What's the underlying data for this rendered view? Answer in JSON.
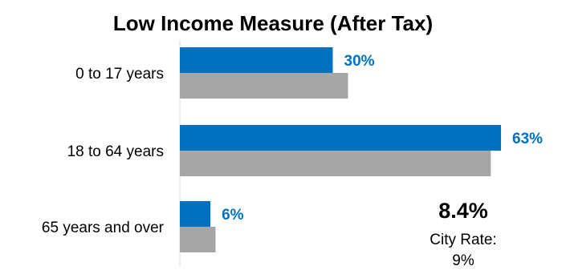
{
  "chart_data": {
    "type": "bar",
    "orientation": "horizontal",
    "title": "Low Income Measure (After Tax)",
    "categories": [
      "0 to 17 years",
      "18 to 64 years",
      "65 years and over"
    ],
    "series": [
      {
        "values": [
          30,
          63,
          6
        ],
        "color": "#0070c0",
        "data_labels": [
          "30%",
          "63%",
          "6%"
        ]
      },
      {
        "values": [
          33,
          61,
          7
        ],
        "color": "#a6a6a6"
      }
    ],
    "xlim": [
      0,
      70
    ],
    "grid": false,
    "legend": "none"
  },
  "callout": {
    "value": "8.4%",
    "label_line1": "City Rate:",
    "label_line2": "9%"
  }
}
